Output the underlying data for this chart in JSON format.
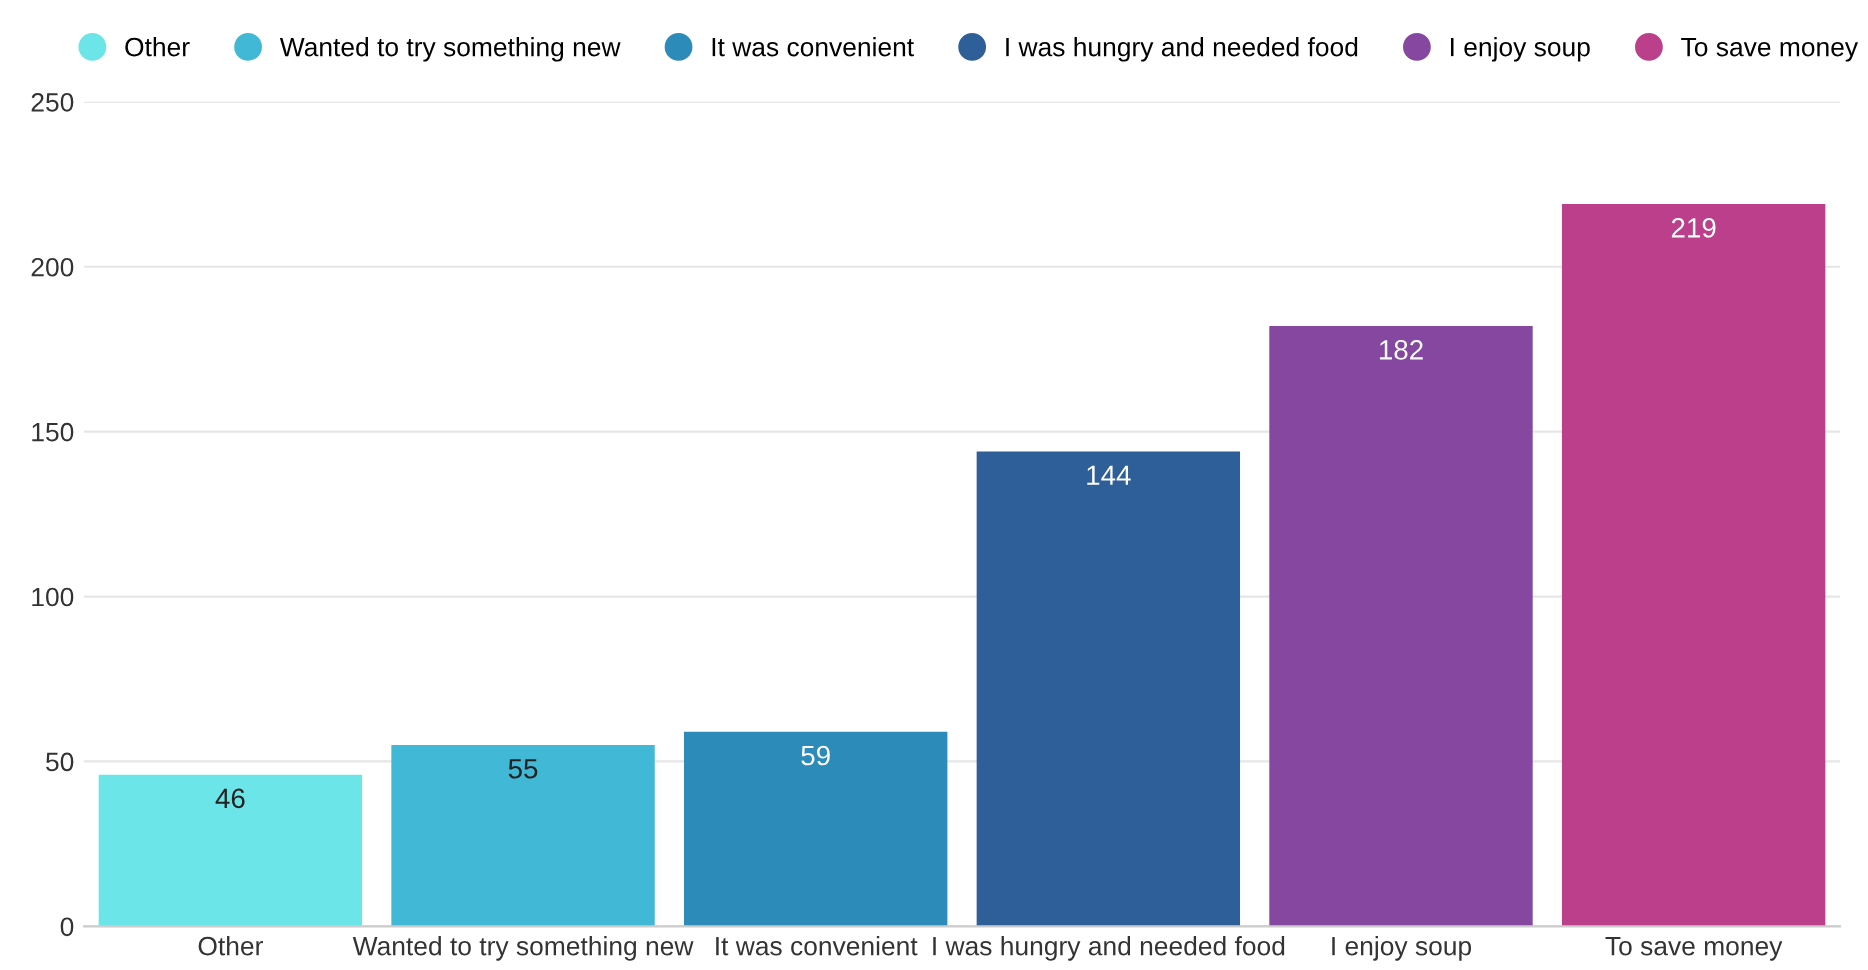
{
  "chart_data": {
    "type": "bar",
    "categories": [
      "Other",
      "Wanted to try something new",
      "It was convenient",
      "I was hungry and needed food",
      "I enjoy soup",
      "To save money"
    ],
    "series": [
      {
        "name": "Other",
        "color": "#6ce5e8",
        "values": [
          46,
          null,
          null,
          null,
          null,
          null
        ]
      },
      {
        "name": "Wanted to try something new",
        "color": "#41b8d5",
        "values": [
          null,
          55,
          null,
          null,
          null,
          null
        ]
      },
      {
        "name": "It was convenient",
        "color": "#2d8bba",
        "values": [
          null,
          null,
          59,
          null,
          null,
          null
        ]
      },
      {
        "name": "I was hungry and needed food",
        "color": "#2f5f98",
        "values": [
          null,
          null,
          null,
          144,
          null,
          null
        ]
      },
      {
        "name": "I enjoy soup",
        "color": "#8647a0",
        "values": [
          null,
          null,
          null,
          null,
          182,
          null
        ]
      },
      {
        "name": "To save money",
        "color": "#bb3f8b",
        "values": [
          null,
          null,
          null,
          null,
          null,
          219
        ]
      }
    ],
    "ylim": [
      0,
      250
    ],
    "yticks": [
      0,
      50,
      100,
      150,
      200,
      250
    ],
    "grid": "y",
    "legend": "top",
    "data_labels": true
  }
}
